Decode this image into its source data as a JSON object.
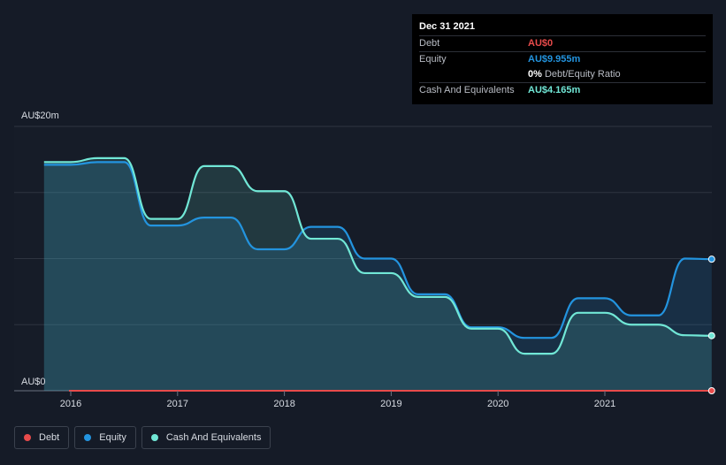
{
  "tooltip": {
    "date": "Dec 31 2021",
    "rows": {
      "debt": {
        "label": "Debt",
        "value": "AU$0",
        "color": "#e84b4b"
      },
      "equity": {
        "label": "Equity",
        "value": "AU$9.955m",
        "color": "#2394df"
      },
      "ratio": {
        "value": "0%",
        "suffix": "Debt/Equity Ratio"
      },
      "cash": {
        "label": "Cash And Equivalents",
        "value": "AU$4.165m",
        "color": "#71e7d6"
      }
    }
  },
  "legend": [
    {
      "label": "Debt",
      "color": "#e84b4b"
    },
    {
      "label": "Equity",
      "color": "#2394df"
    },
    {
      "label": "Cash And Equivalents",
      "color": "#71e7d6"
    }
  ],
  "chart_data": {
    "type": "area",
    "ylim": [
      0,
      20
    ],
    "y_tick_labels": [
      "AU$20m",
      "AU$0"
    ],
    "x_tick_labels": [
      "2016",
      "2017",
      "2018",
      "2019",
      "2020",
      "2021"
    ],
    "grid": true,
    "legend_position": "bottom-left",
    "series": [
      {
        "name": "Equity",
        "color": "#2394df",
        "x": [
          2015.75,
          2016.0,
          2016.25,
          2016.5,
          2016.75,
          2017.0,
          2017.25,
          2017.5,
          2017.75,
          2018.0,
          2018.25,
          2018.5,
          2018.75,
          2019.0,
          2019.25,
          2019.5,
          2019.75,
          2020.0,
          2020.25,
          2020.5,
          2020.75,
          2021.0,
          2021.25,
          2021.5,
          2021.75,
          2022.0
        ],
        "values": [
          17.1,
          17.1,
          17.3,
          17.3,
          12.5,
          12.5,
          13.1,
          13.1,
          10.7,
          10.7,
          12.4,
          12.4,
          10.0,
          10.0,
          7.3,
          7.3,
          4.8,
          4.8,
          4.0,
          4.0,
          7.0,
          7.0,
          5.7,
          5.7,
          10.0,
          9.955
        ]
      },
      {
        "name": "Cash And Equivalents",
        "color": "#71e7d6",
        "x": [
          2015.75,
          2016.0,
          2016.25,
          2016.5,
          2016.75,
          2017.0,
          2017.25,
          2017.5,
          2017.75,
          2018.0,
          2018.25,
          2018.5,
          2018.75,
          2019.0,
          2019.25,
          2019.5,
          2019.75,
          2020.0,
          2020.25,
          2020.5,
          2020.75,
          2021.0,
          2021.25,
          2021.5,
          2021.75,
          2022.0
        ],
        "values": [
          17.3,
          17.3,
          17.6,
          17.6,
          13.0,
          13.0,
          17.0,
          17.0,
          15.1,
          15.1,
          11.5,
          11.5,
          8.9,
          8.9,
          7.1,
          7.1,
          4.7,
          4.7,
          2.8,
          2.8,
          5.9,
          5.9,
          5.0,
          5.0,
          4.2,
          4.165
        ]
      },
      {
        "name": "Debt",
        "color": "#e84b4b",
        "x": [
          2015.75,
          2022.0
        ],
        "values": [
          0,
          0
        ]
      }
    ]
  }
}
